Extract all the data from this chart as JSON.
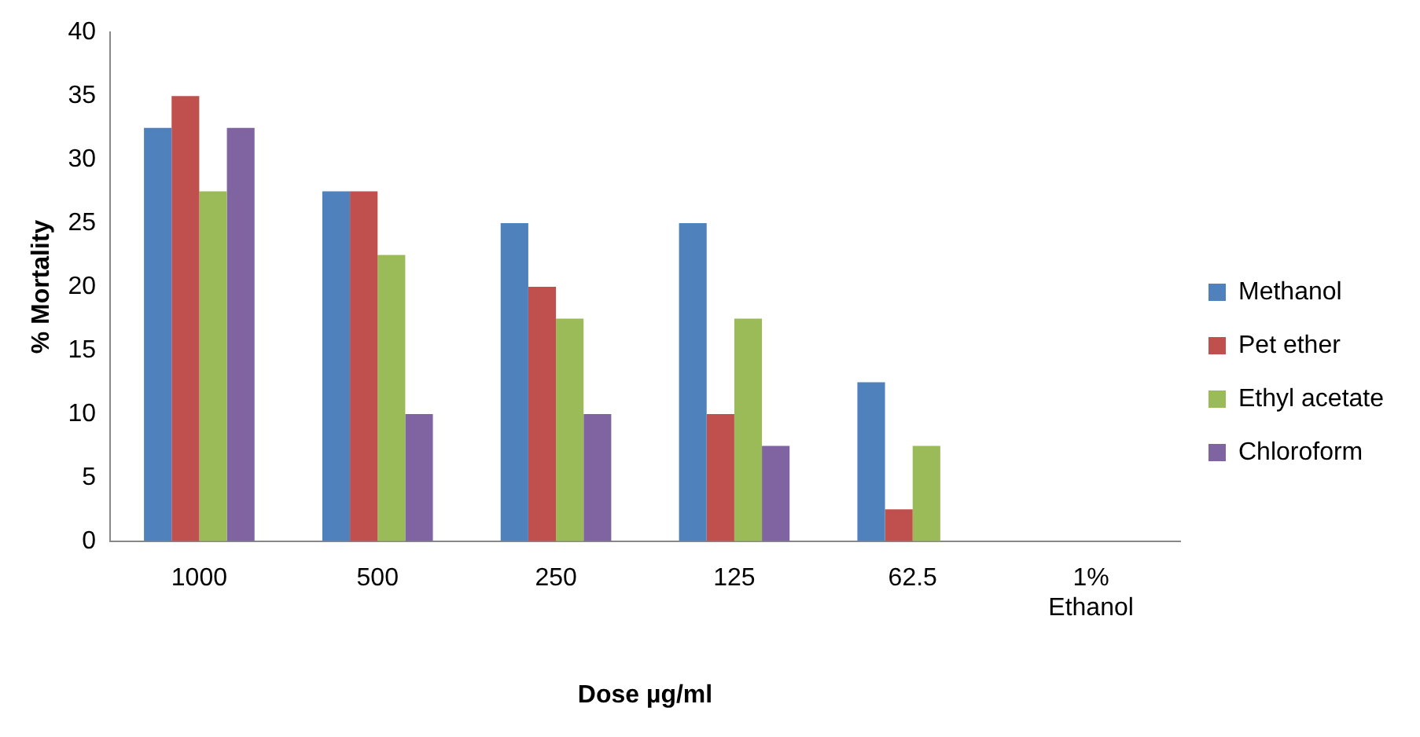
{
  "chart_data": {
    "type": "bar",
    "xlabel": "Dose µg/ml",
    "ylabel": "% Mortality",
    "categories": [
      "1000",
      "500",
      "250",
      "125",
      "62.5",
      "1% Ethanol"
    ],
    "series": [
      {
        "name": "Methanol",
        "color": "#4f81bd",
        "values": [
          32.5,
          27.5,
          25,
          25,
          12.5,
          0
        ]
      },
      {
        "name": "Pet ether",
        "color": "#c0504d",
        "values": [
          35,
          27.5,
          20,
          10,
          2.5,
          0
        ]
      },
      {
        "name": "Ethyl acetate",
        "color": "#9bbb59",
        "values": [
          27.5,
          22.5,
          17.5,
          17.5,
          7.5,
          0
        ]
      },
      {
        "name": "Chloroform",
        "color": "#8064a2",
        "values": [
          32.5,
          10,
          10,
          7.5,
          0,
          0
        ]
      }
    ],
    "ylim": [
      0,
      40
    ],
    "yticks": [
      0,
      5,
      10,
      15,
      20,
      25,
      30,
      35,
      40
    ],
    "grid": false,
    "legend": "right"
  }
}
